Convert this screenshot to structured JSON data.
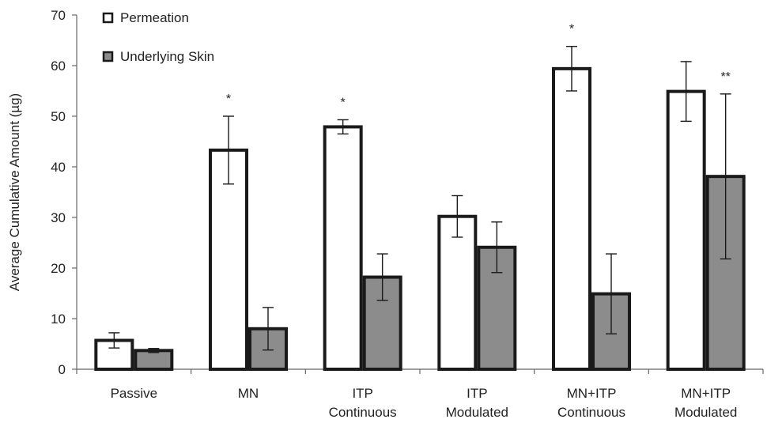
{
  "chart_data": {
    "type": "bar",
    "title": "",
    "xlabel": "",
    "ylabel": "Average Cumulative Amount (µg)",
    "ylim": [
      0,
      70
    ],
    "yticks": [
      0,
      10,
      20,
      30,
      40,
      50,
      60,
      70
    ],
    "grid": false,
    "legend_position": "top-left",
    "categories": [
      [
        "Passive"
      ],
      [
        "MN"
      ],
      [
        "ITP",
        "Continuous"
      ],
      [
        "ITP",
        "Modulated"
      ],
      [
        "MN+ITP",
        "Continuous"
      ],
      [
        "MN+ITP",
        "Modulated"
      ]
    ],
    "series": [
      {
        "name": "Permeation",
        "color": "#ffffff",
        "values": [
          5.7,
          43.3,
          47.9,
          30.2,
          59.4,
          54.9
        ],
        "errors": [
          1.5,
          6.7,
          1.4,
          4.1,
          4.4,
          5.9
        ],
        "annotations": [
          "",
          "*",
          "*",
          "",
          "*",
          ""
        ]
      },
      {
        "name": "Underlying Skin",
        "color": "#8c8c8c",
        "values": [
          3.7,
          8.0,
          18.2,
          24.1,
          14.9,
          38.1
        ],
        "errors": [
          0.4,
          4.2,
          4.6,
          5.0,
          7.9,
          16.3
        ],
        "annotations": [
          "",
          "",
          "",
          "",
          "",
          "**"
        ]
      }
    ]
  }
}
